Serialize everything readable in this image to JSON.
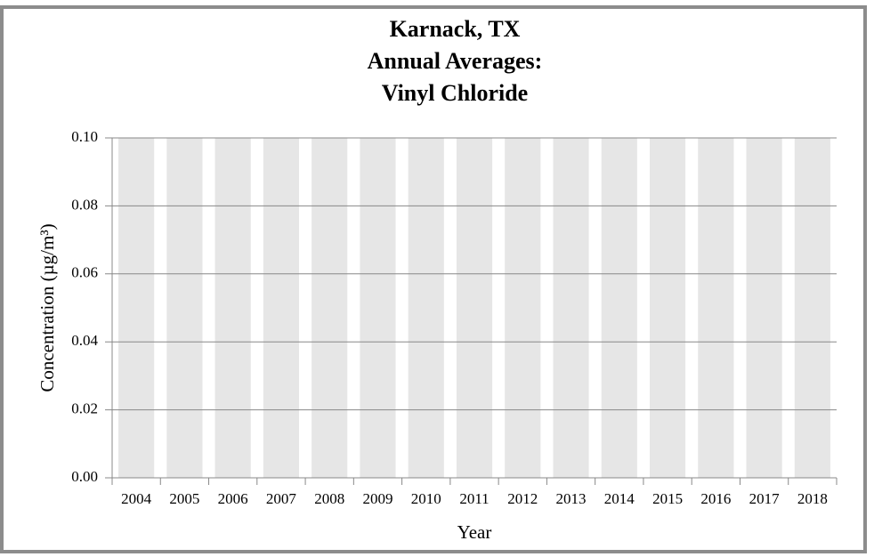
{
  "chart_data": {
    "type": "bar",
    "title_lines": [
      "Karnack, TX",
      "Annual Averages:",
      "Vinyl Chloride"
    ],
    "ylabel": "Concentration (µg/m³)",
    "xlabel": "Year",
    "categories": [
      "2004",
      "2005",
      "2006",
      "2007",
      "2008",
      "2009",
      "2010",
      "2011",
      "2012",
      "2013",
      "2014",
      "2015",
      "2016",
      "2017",
      "2018"
    ],
    "values": [
      0.1,
      0.1,
      0.1,
      0.1,
      0.1,
      0.1,
      0.1,
      0.1,
      0.1,
      0.1,
      0.1,
      0.1,
      0.1,
      0.1,
      0.1
    ],
    "color": "#e6e6e6",
    "ylim": [
      0,
      0.1
    ],
    "yticks": [
      {
        "value": 0,
        "label": "0.00"
      },
      {
        "value": 0.02,
        "label": "0.02"
      },
      {
        "value": 0.04,
        "label": "0.04"
      },
      {
        "value": 0.06,
        "label": "0.06"
      },
      {
        "value": 0.08,
        "label": "0.08"
      },
      {
        "value": 0.1,
        "label": "0.10"
      }
    ],
    "grid": true
  }
}
